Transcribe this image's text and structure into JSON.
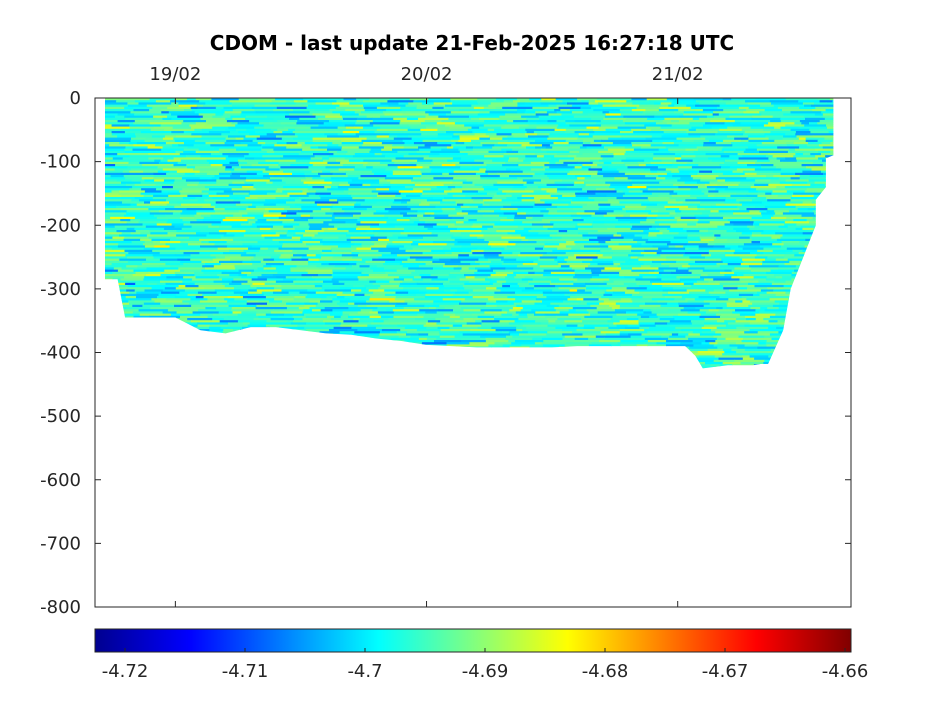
{
  "chart_data": {
    "type": "heatmap",
    "title": "CDOM - last update 21-Feb-2025 16:27:18 UTC",
    "xlabel": "",
    "ylabel": "",
    "x_ticks": [
      "19/02",
      "20/02",
      "21/02"
    ],
    "x_tick_positions_days": [
      1,
      2,
      3
    ],
    "x_range_days": [
      0.68,
      3.69
    ],
    "y_ticks": [
      0,
      -100,
      -200,
      -300,
      -400,
      -500,
      -600,
      -700,
      -800
    ],
    "ylim": [
      -800,
      0
    ],
    "colorbar": {
      "ticks": [
        "-4.72",
        "-4.71",
        "-4.7",
        "-4.69",
        "-4.68",
        "-4.67",
        "-4.66"
      ],
      "range": [
        -4.7225,
        -4.6595
      ],
      "colormap": "jet",
      "colors": [
        "#00008f",
        "#0000ff",
        "#0080ff",
        "#00ffff",
        "#80ff80",
        "#ffff00",
        "#ff8000",
        "#ff0000",
        "#800000"
      ]
    },
    "value_mean": -4.696,
    "bottom_depth_profile": {
      "x_days": [
        0.72,
        0.76,
        0.77,
        0.8,
        0.9,
        0.9,
        1.0,
        1.0,
        1.1,
        1.2,
        1.3,
        1.4,
        1.5,
        1.6,
        1.7,
        1.8,
        1.9,
        2.0,
        2.1,
        2.2,
        2.3,
        2.4,
        2.5,
        2.6,
        2.7,
        2.8,
        2.9,
        3.0,
        3.03,
        3.07,
        3.1,
        3.2,
        3.2,
        3.25,
        3.3,
        3.33,
        3.36,
        3.42,
        3.45,
        3.5,
        3.55,
        3.55,
        3.59,
        3.59,
        3.62
      ],
      "depth": [
        -285,
        -285,
        -285,
        -345,
        -345,
        -345,
        -345,
        -345,
        -365,
        -370,
        -360,
        -360,
        -365,
        -370,
        -372,
        -378,
        -382,
        -388,
        -390,
        -392,
        -392,
        -392,
        -392,
        -390,
        -390,
        -390,
        -390,
        -390,
        -390,
        -405,
        -425,
        -420,
        -420,
        -420,
        -420,
        -418,
        -418,
        -365,
        -300,
        -250,
        -200,
        -160,
        -140,
        -95,
        -90
      ]
    }
  }
}
